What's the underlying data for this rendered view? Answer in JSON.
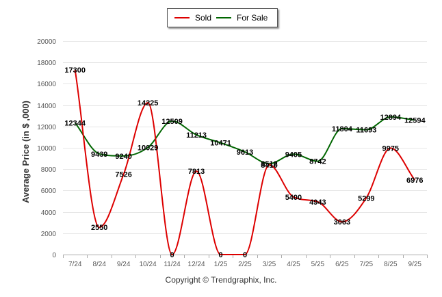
{
  "legend": {
    "items": [
      {
        "label": "Sold",
        "color": "#dd0000"
      },
      {
        "label": "For Sale",
        "color": "#006600"
      }
    ]
  },
  "footer": {
    "copyright": "Copyright © Trendgraphix, Inc."
  },
  "chart_data": {
    "type": "line",
    "title": "",
    "xlabel": "",
    "ylabel": "Average Price (in $ ,000)",
    "ylim": [
      0,
      20000
    ],
    "yticks": [
      0,
      2000,
      4000,
      6000,
      8000,
      10000,
      12000,
      14000,
      16000,
      18000,
      20000
    ],
    "categories": [
      "7/24",
      "8/24",
      "9/24",
      "10/24",
      "11/24",
      "12/24",
      "1/25",
      "2/25",
      "3/25",
      "4/25",
      "5/25",
      "6/25",
      "7/25",
      "8/25",
      "9/25"
    ],
    "grid": true,
    "legend_position": "top-center",
    "series": [
      {
        "name": "Sold",
        "color": "#dd0000",
        "values": [
          17300,
          2550,
          7526,
          14225,
          0,
          7813,
          0,
          0,
          8410,
          5400,
          4943,
          3063,
          5299,
          9975,
          6976
        ]
      },
      {
        "name": "For Sale",
        "color": "#006600",
        "values": [
          12344,
          9439,
          9240,
          10029,
          12509,
          11213,
          10471,
          9613,
          8512,
          9405,
          8742,
          11804,
          11693,
          12894,
          12594
        ]
      }
    ]
  }
}
